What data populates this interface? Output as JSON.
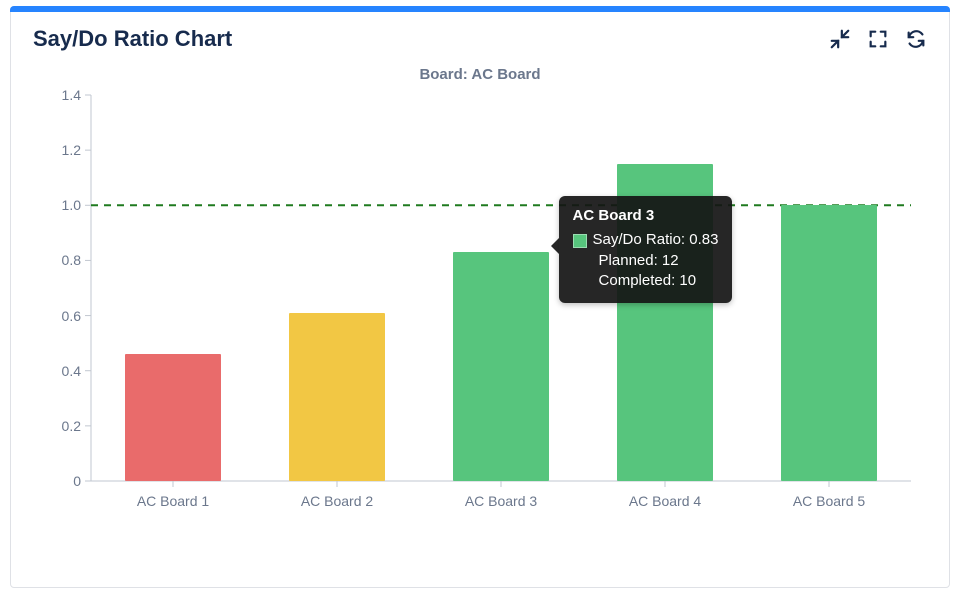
{
  "card": {
    "accent_color": "#2684ff",
    "border_color": "#dfe1e6",
    "title": "Say/Do Ratio Chart"
  },
  "icons": {
    "collapse": "collapse",
    "fullscreen": "fullscreen",
    "refresh": "refresh"
  },
  "chart": {
    "type": "bar",
    "title": "Board: AC Board",
    "title_color": "#6b778c",
    "title_fontsize": 15,
    "label_fontsize": 14,
    "label_color": "#6b778c",
    "background_color": "#ffffff",
    "axis_color": "#c1c7d0",
    "ylim": [
      0,
      1.4
    ],
    "ytick_step": 0.2,
    "yticks": [
      "0",
      "0.2",
      "0.4",
      "0.6",
      "0.8",
      "1.0",
      "1.2",
      "1.4"
    ],
    "bar_width_ratio": 0.58,
    "reference_line": {
      "value": 1.0,
      "color": "#1f7a1f",
      "dash": true
    },
    "categories": [
      "AC Board 1",
      "AC Board 2",
      "AC Board 3",
      "AC Board 4",
      "AC Board 5"
    ],
    "values": [
      0.46,
      0.61,
      0.83,
      1.15,
      1.0
    ],
    "bar_colors": [
      "#e96b6b",
      "#f2c744",
      "#57c57d",
      "#57c57d",
      "#57c57d"
    ]
  },
  "tooltip": {
    "visible": true,
    "anchor_category_index": 2,
    "title": "AC Board 3",
    "swatch_color": "#57c57d",
    "lines": [
      "Say/Do Ratio: 0.83",
      "Planned: 12",
      "Completed: 10"
    ]
  }
}
